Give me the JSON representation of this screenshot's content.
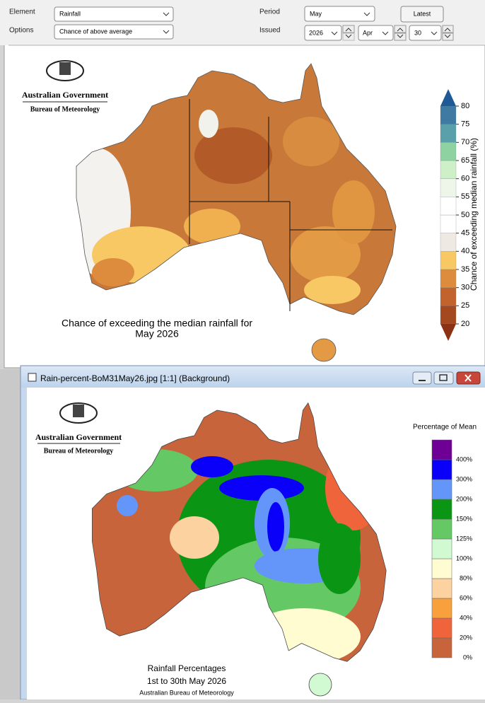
{
  "controls": {
    "element_label": "Element",
    "element_value": "Rainfall",
    "options_label": "Options",
    "options_value": "Chance of above average",
    "period_label": "Period",
    "period_value": "May",
    "latest_button": "Latest",
    "issued_label": "Issued",
    "issued_year": "2026",
    "issued_month": "Apr",
    "issued_day": "30"
  },
  "outlook_map": {
    "logo_line1": "Australian Government",
    "logo_line2": "Bureau of Meteorology",
    "title_lines": [
      "Chance of exceeding the median rainfall for",
      "May 2026"
    ],
    "legend_title": "Chance of exceeding median rainfall (%)",
    "legend_ticks": [
      20,
      25,
      30,
      35,
      40,
      45,
      50,
      55,
      60,
      65,
      70,
      75,
      80
    ],
    "legend_colors": [
      "#a4481f",
      "#c2632e",
      "#dc8c3c",
      "#f8c864",
      "#efe9e3",
      "#ffffff",
      "#ffffff",
      "#eef6ea",
      "#cdf0c8",
      "#8ed2a2",
      "#5aa0aa",
      "#3e7aa2"
    ],
    "legend_low_color": "#8c3214",
    "legend_high_color": "#1e5a96"
  },
  "window": {
    "title": "Rain-percent-BoM31May26.jpg [1:1] (Background)"
  },
  "percent_map": {
    "logo_line1": "Australian Government",
    "logo_line2": "Bureau of Meteorology",
    "legend_title": "Percentage of Mean",
    "legend_labels": [
      "0%",
      "20%",
      "40%",
      "60%",
      "80%",
      "100%",
      "125%",
      "150%",
      "200%",
      "300%",
      "400%"
    ],
    "legend_colors": [
      "#c8643c",
      "#f0643c",
      "#f8a03c",
      "#fcd2a0",
      "#fffcd2",
      "#d2fad2",
      "#64c864",
      "#0a9614",
      "#6496fa",
      "#0a00fa",
      "#6e0096"
    ],
    "caption_lines": [
      "Rainfall Percentages",
      "1st to 30th May 2026",
      "Australian Bureau of Meteorology"
    ]
  }
}
